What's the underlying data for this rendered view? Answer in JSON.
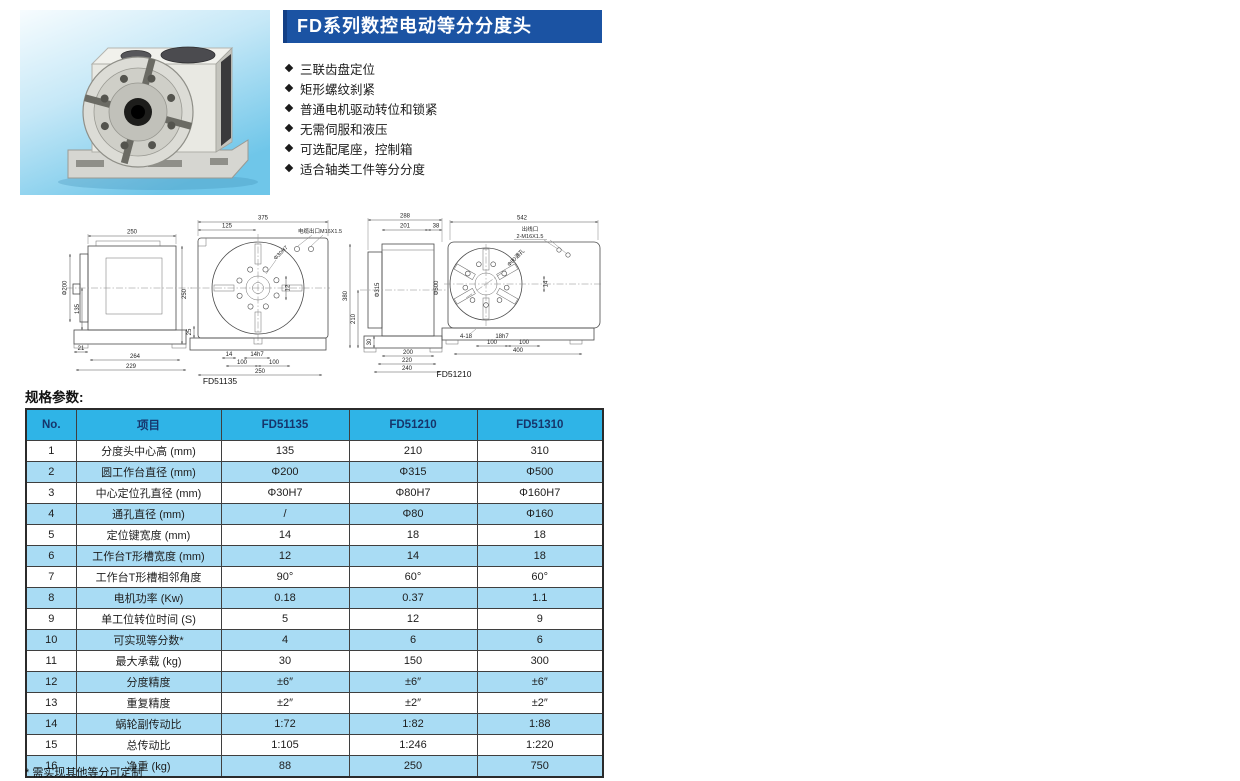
{
  "banner": {
    "title": "FD系列数控电动等分分度头"
  },
  "features": [
    "三联齿盘定位",
    "矩形螺纹刹紧",
    "普通电机驱动转位和锁紧",
    "无需伺服和液压",
    "可选配尾座，控制箱",
    "适合轴类工件等分分度"
  ],
  "drawings": {
    "captions": {
      "left": "FD51135",
      "right": "FD51210"
    },
    "d1s": [
      "250",
      "Φ200",
      "135",
      "21",
      "264",
      "229",
      "250"
    ],
    "d1f": [
      "375",
      "125",
      "电缆出口M16X1.5",
      "Φ30H7",
      "12",
      "25",
      "14",
      "14h7",
      "100",
      "100",
      "250"
    ],
    "d2s": [
      "288",
      "201",
      "38",
      "380",
      "210",
      "30",
      "Φ315",
      "Φ500",
      "200",
      "220",
      "240"
    ],
    "d2f": [
      "542",
      "出线口",
      "2-M16X1.5",
      "Φ80通孔",
      "14",
      "4-18",
      "18h7",
      "100",
      "100",
      "400"
    ]
  },
  "spec": {
    "heading": "规格参数:",
    "footnote": "* 需实现其他等分可定制"
  },
  "table": {
    "headers": [
      "No.",
      "项目",
      "FD51135",
      "FD51210",
      "FD51310"
    ],
    "rows": [
      [
        "1",
        "分度头中心高 (mm)",
        "135",
        "210",
        "310"
      ],
      [
        "2",
        "圆工作台直径 (mm)",
        "Φ200",
        "Φ315",
        "Φ500"
      ],
      [
        "3",
        "中心定位孔直径 (mm)",
        "Φ30H7",
        "Φ80H7",
        "Φ160H7"
      ],
      [
        "4",
        "通孔直径 (mm)",
        "/",
        "Φ80",
        "Φ160"
      ],
      [
        "5",
        "定位键宽度 (mm)",
        "14",
        "18",
        "18"
      ],
      [
        "6",
        "工作台T形槽宽度 (mm)",
        "12",
        "14",
        "18"
      ],
      [
        "7",
        "工作台T形槽相邻角度",
        "90°",
        "60°",
        "60°"
      ],
      [
        "8",
        "电机功率 (Kw)",
        "0.18",
        "0.37",
        "1.1"
      ],
      [
        "9",
        "单工位转位时间 (S)",
        "5",
        "12",
        "9"
      ],
      [
        "10",
        "可实现等分数*",
        "4",
        "6",
        "6"
      ],
      [
        "11",
        "最大承载 (kg)",
        "30",
        "150",
        "300"
      ],
      [
        "12",
        "分度精度",
        "±6″",
        "±6″",
        "±6″"
      ],
      [
        "13",
        "重复精度",
        "±2″",
        "±2″",
        "±2″"
      ],
      [
        "14",
        "蜗轮副传动比",
        "1:72",
        "1:82",
        "1:88"
      ],
      [
        "15",
        "总传动比",
        "1:105",
        "1:246",
        "1:220"
      ],
      [
        "16",
        "净重 (kg)",
        "88",
        "250",
        "750"
      ]
    ]
  },
  "colors": {
    "banner-bg": "#1b53a3",
    "header-bg": "#2fb4e7",
    "header-text": "#16356b",
    "row-alt": "#a9dcf4"
  }
}
